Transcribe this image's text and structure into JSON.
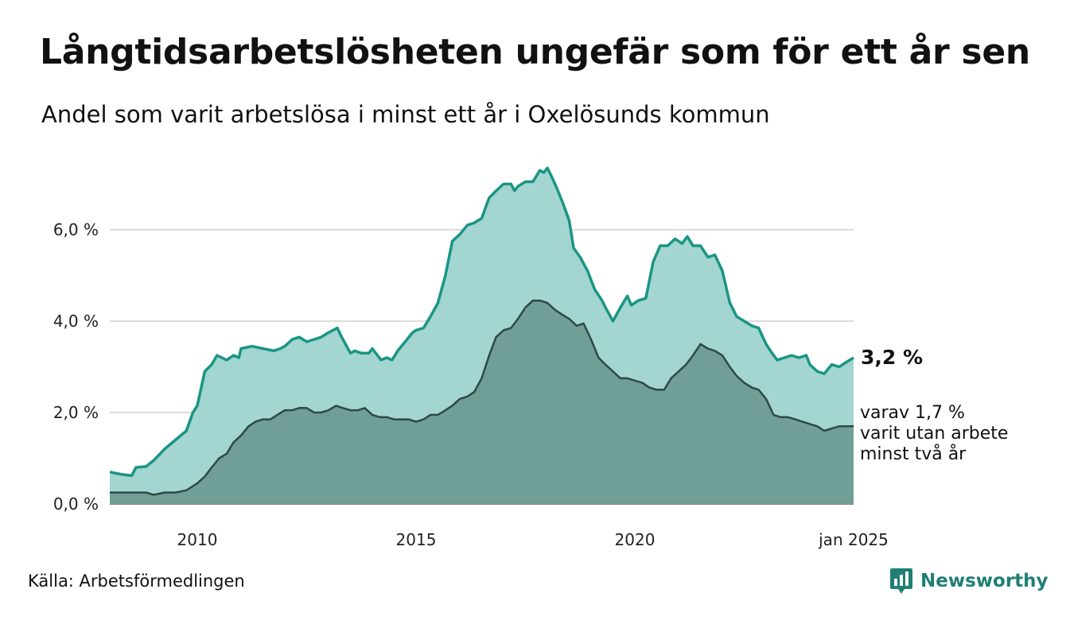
{
  "title": "Långtidsarbetslösheten ungefär som för ett år sen",
  "subtitle": "Andel som varit arbetslösa i minst ett år i Oxelösunds kommun",
  "source": "Källa: Arbetsförmedlingen",
  "brand": {
    "name": "Newsworthy",
    "icon": "newsworthy-logo-icon"
  },
  "colors": {
    "total_fill": "#a3d6d0",
    "total_line": "#1a9585",
    "sub_fill": "#6f9f97",
    "sub_line": "#2d4a45",
    "grid": "#dcdcdc",
    "brand": "#1f7f74"
  },
  "labels": {
    "total_value": "3,2 %",
    "sub_lines": [
      "varav 1,7 %",
      "varit utan arbete",
      "minst två år"
    ]
  },
  "chart_data": {
    "type": "area",
    "x_unit": "year (decimal, monthly data)",
    "x_range": [
      2008.0,
      2025.0
    ],
    "ylim": [
      0,
      7.6
    ],
    "y_ticks": [
      0,
      2,
      4,
      6
    ],
    "y_tick_labels": [
      "0,0 %",
      "2,0 %",
      "4,0 %",
      "6,0 %"
    ],
    "x_tick_values": [
      2010,
      2015,
      2020,
      2025
    ],
    "x_tick_labels": [
      "2010",
      "2015",
      "2020",
      "jan 2025"
    ],
    "grid": "horizontal",
    "series": [
      {
        "id": "total",
        "points": [
          [
            2008.0,
            0.7
          ],
          [
            2008.25,
            0.65
          ],
          [
            2008.5,
            0.62
          ],
          [
            2008.6,
            0.8
          ],
          [
            2008.83,
            0.82
          ],
          [
            2009.0,
            0.95
          ],
          [
            2009.25,
            1.2
          ],
          [
            2009.5,
            1.4
          ],
          [
            2009.75,
            1.6
          ],
          [
            2009.9,
            2.0
          ],
          [
            2010.0,
            2.15
          ],
          [
            2010.08,
            2.5
          ],
          [
            2010.17,
            2.9
          ],
          [
            2010.33,
            3.05
          ],
          [
            2010.45,
            3.25
          ],
          [
            2010.67,
            3.15
          ],
          [
            2010.83,
            3.25
          ],
          [
            2010.95,
            3.2
          ],
          [
            2011.0,
            3.4
          ],
          [
            2011.25,
            3.45
          ],
          [
            2011.5,
            3.4
          ],
          [
            2011.75,
            3.35
          ],
          [
            2011.9,
            3.4
          ],
          [
            2012.0,
            3.45
          ],
          [
            2012.17,
            3.6
          ],
          [
            2012.33,
            3.65
          ],
          [
            2012.5,
            3.55
          ],
          [
            2012.67,
            3.6
          ],
          [
            2012.83,
            3.65
          ],
          [
            2013.0,
            3.75
          ],
          [
            2013.2,
            3.85
          ],
          [
            2013.3,
            3.65
          ],
          [
            2013.5,
            3.3
          ],
          [
            2013.6,
            3.35
          ],
          [
            2013.75,
            3.3
          ],
          [
            2013.92,
            3.3
          ],
          [
            2014.0,
            3.4
          ],
          [
            2014.2,
            3.15
          ],
          [
            2014.33,
            3.2
          ],
          [
            2014.45,
            3.15
          ],
          [
            2014.58,
            3.35
          ],
          [
            2014.75,
            3.55
          ],
          [
            2014.92,
            3.75
          ],
          [
            2015.0,
            3.8
          ],
          [
            2015.17,
            3.85
          ],
          [
            2015.33,
            4.1
          ],
          [
            2015.5,
            4.4
          ],
          [
            2015.67,
            5.0
          ],
          [
            2015.83,
            5.75
          ],
          [
            2016.0,
            5.9
          ],
          [
            2016.17,
            6.1
          ],
          [
            2016.33,
            6.15
          ],
          [
            2016.5,
            6.25
          ],
          [
            2016.67,
            6.7
          ],
          [
            2016.83,
            6.85
          ],
          [
            2017.0,
            7.0
          ],
          [
            2017.17,
            7.0
          ],
          [
            2017.25,
            6.85
          ],
          [
            2017.33,
            6.95
          ],
          [
            2017.5,
            7.05
          ],
          [
            2017.67,
            7.05
          ],
          [
            2017.83,
            7.3
          ],
          [
            2017.92,
            7.25
          ],
          [
            2018.0,
            7.35
          ],
          [
            2018.08,
            7.2
          ],
          [
            2018.2,
            6.95
          ],
          [
            2018.35,
            6.6
          ],
          [
            2018.5,
            6.2
          ],
          [
            2018.6,
            5.6
          ],
          [
            2018.75,
            5.4
          ],
          [
            2018.92,
            5.1
          ],
          [
            2019.08,
            4.7
          ],
          [
            2019.25,
            4.45
          ],
          [
            2019.33,
            4.3
          ],
          [
            2019.5,
            4.0
          ],
          [
            2019.67,
            4.3
          ],
          [
            2019.83,
            4.55
          ],
          [
            2019.92,
            4.35
          ],
          [
            2020.08,
            4.45
          ],
          [
            2020.25,
            4.5
          ],
          [
            2020.42,
            5.3
          ],
          [
            2020.58,
            5.65
          ],
          [
            2020.75,
            5.65
          ],
          [
            2020.92,
            5.8
          ],
          [
            2021.08,
            5.7
          ],
          [
            2021.2,
            5.85
          ],
          [
            2021.33,
            5.65
          ],
          [
            2021.5,
            5.65
          ],
          [
            2021.67,
            5.4
          ],
          [
            2021.83,
            5.45
          ],
          [
            2022.0,
            5.1
          ],
          [
            2022.17,
            4.4
          ],
          [
            2022.33,
            4.1
          ],
          [
            2022.5,
            4.0
          ],
          [
            2022.67,
            3.9
          ],
          [
            2022.83,
            3.85
          ],
          [
            2023.0,
            3.5
          ],
          [
            2023.1,
            3.35
          ],
          [
            2023.25,
            3.15
          ],
          [
            2023.42,
            3.2
          ],
          [
            2023.58,
            3.25
          ],
          [
            2023.75,
            3.2
          ],
          [
            2023.92,
            3.25
          ],
          [
            2024.0,
            3.05
          ],
          [
            2024.17,
            2.9
          ],
          [
            2024.33,
            2.85
          ],
          [
            2024.5,
            3.05
          ],
          [
            2024.67,
            3.0
          ],
          [
            2024.83,
            3.1
          ],
          [
            2025.0,
            3.2
          ]
        ]
      },
      {
        "id": "two_years",
        "points": [
          [
            2008.0,
            0.25
          ],
          [
            2008.5,
            0.25
          ],
          [
            2008.83,
            0.25
          ],
          [
            2009.0,
            0.2
          ],
          [
            2009.25,
            0.25
          ],
          [
            2009.5,
            0.25
          ],
          [
            2009.75,
            0.3
          ],
          [
            2010.0,
            0.45
          ],
          [
            2010.17,
            0.6
          ],
          [
            2010.33,
            0.8
          ],
          [
            2010.5,
            1.0
          ],
          [
            2010.67,
            1.1
          ],
          [
            2010.83,
            1.35
          ],
          [
            2011.0,
            1.5
          ],
          [
            2011.17,
            1.7
          ],
          [
            2011.33,
            1.8
          ],
          [
            2011.5,
            1.85
          ],
          [
            2011.67,
            1.85
          ],
          [
            2011.83,
            1.95
          ],
          [
            2012.0,
            2.05
          ],
          [
            2012.17,
            2.05
          ],
          [
            2012.33,
            2.1
          ],
          [
            2012.5,
            2.1
          ],
          [
            2012.67,
            2.0
          ],
          [
            2012.83,
            2.0
          ],
          [
            2013.0,
            2.05
          ],
          [
            2013.17,
            2.15
          ],
          [
            2013.33,
            2.1
          ],
          [
            2013.5,
            2.05
          ],
          [
            2013.67,
            2.05
          ],
          [
            2013.83,
            2.1
          ],
          [
            2014.0,
            1.95
          ],
          [
            2014.17,
            1.9
          ],
          [
            2014.33,
            1.9
          ],
          [
            2014.5,
            1.85
          ],
          [
            2014.67,
            1.85
          ],
          [
            2014.83,
            1.85
          ],
          [
            2015.0,
            1.8
          ],
          [
            2015.17,
            1.85
          ],
          [
            2015.33,
            1.95
          ],
          [
            2015.5,
            1.95
          ],
          [
            2015.67,
            2.05
          ],
          [
            2015.83,
            2.15
          ],
          [
            2016.0,
            2.3
          ],
          [
            2016.17,
            2.35
          ],
          [
            2016.33,
            2.45
          ],
          [
            2016.5,
            2.75
          ],
          [
            2016.67,
            3.25
          ],
          [
            2016.83,
            3.65
          ],
          [
            2017.0,
            3.8
          ],
          [
            2017.17,
            3.85
          ],
          [
            2017.33,
            4.05
          ],
          [
            2017.5,
            4.3
          ],
          [
            2017.67,
            4.45
          ],
          [
            2017.83,
            4.45
          ],
          [
            2018.0,
            4.4
          ],
          [
            2018.17,
            4.25
          ],
          [
            2018.33,
            4.15
          ],
          [
            2018.5,
            4.05
          ],
          [
            2018.67,
            3.9
          ],
          [
            2018.83,
            3.95
          ],
          [
            2019.0,
            3.6
          ],
          [
            2019.17,
            3.2
          ],
          [
            2019.33,
            3.05
          ],
          [
            2019.5,
            2.9
          ],
          [
            2019.67,
            2.75
          ],
          [
            2019.83,
            2.75
          ],
          [
            2020.0,
            2.7
          ],
          [
            2020.17,
            2.65
          ],
          [
            2020.33,
            2.55
          ],
          [
            2020.5,
            2.5
          ],
          [
            2020.67,
            2.5
          ],
          [
            2020.83,
            2.75
          ],
          [
            2021.0,
            2.9
          ],
          [
            2021.17,
            3.05
          ],
          [
            2021.33,
            3.25
          ],
          [
            2021.5,
            3.5
          ],
          [
            2021.67,
            3.4
          ],
          [
            2021.83,
            3.35
          ],
          [
            2022.0,
            3.25
          ],
          [
            2022.17,
            3.0
          ],
          [
            2022.33,
            2.8
          ],
          [
            2022.5,
            2.65
          ],
          [
            2022.67,
            2.55
          ],
          [
            2022.83,
            2.5
          ],
          [
            2023.0,
            2.3
          ],
          [
            2023.17,
            1.95
          ],
          [
            2023.33,
            1.9
          ],
          [
            2023.5,
            1.9
          ],
          [
            2023.67,
            1.85
          ],
          [
            2023.83,
            1.8
          ],
          [
            2024.0,
            1.75
          ],
          [
            2024.17,
            1.7
          ],
          [
            2024.33,
            1.6
          ],
          [
            2024.5,
            1.65
          ],
          [
            2024.67,
            1.7
          ],
          [
            2024.83,
            1.7
          ],
          [
            2025.0,
            1.7
          ]
        ]
      }
    ]
  }
}
